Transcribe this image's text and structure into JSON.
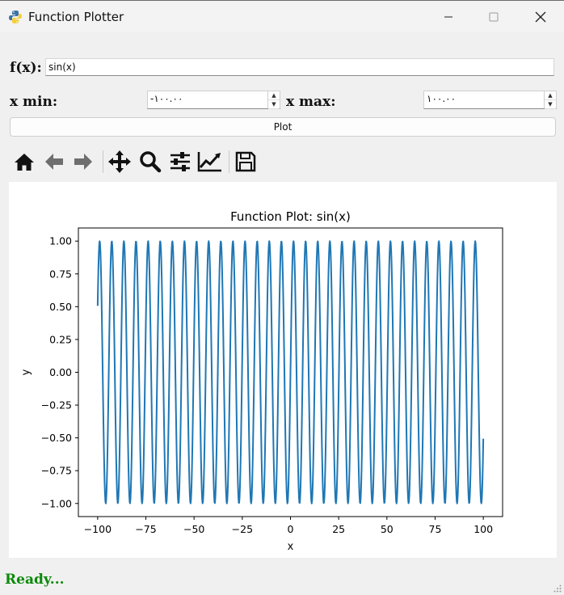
{
  "window": {
    "title": "Function Plotter",
    "minimize": "—",
    "maximize": "☐",
    "close": "✕"
  },
  "form": {
    "fx_label": "f(x):",
    "fx_value": "sin(x)",
    "xmin_label": "x min:",
    "xmin_value": "-١٠٠.٠٠",
    "xmax_label": "x max:",
    "xmax_value": "١٠٠.٠٠",
    "plot_button": "Plot"
  },
  "toolbar": {
    "icons": [
      "home-icon",
      "back-arrow-icon",
      "forward-arrow-icon",
      "pan-move-icon",
      "zoom-magnifier-icon",
      "configure-subplots-icon",
      "edit-axes-icon",
      "save-disk-icon"
    ]
  },
  "status": {
    "text": "Ready..."
  },
  "colors": {
    "series": "#1f77b4",
    "status": "#0a8a0a"
  },
  "chart_data": {
    "type": "line",
    "title": "Function Plot: sin(x)",
    "xlabel": "x",
    "ylabel": "y",
    "function": "sin(x)",
    "x_range": [
      -100,
      100
    ],
    "xlim": [
      -110,
      110
    ],
    "ylim": [
      -1.1,
      1.1
    ],
    "xticks": [
      -100,
      -75,
      -50,
      -25,
      0,
      25,
      50,
      75,
      100
    ],
    "xtick_labels": [
      "−100",
      "−75",
      "−50",
      "−25",
      "0",
      "25",
      "50",
      "75",
      "100"
    ],
    "yticks": [
      1.0,
      0.75,
      0.5,
      0.25,
      0.0,
      -0.25,
      -0.5,
      -0.75,
      -1.0
    ],
    "ytick_labels": [
      "1.00",
      "0.75",
      "0.50",
      "0.25",
      "0.00",
      "−0.25",
      "−0.50",
      "−0.75",
      "−1.00"
    ],
    "grid": false,
    "series": [
      {
        "color": "#1f77b4"
      }
    ]
  }
}
